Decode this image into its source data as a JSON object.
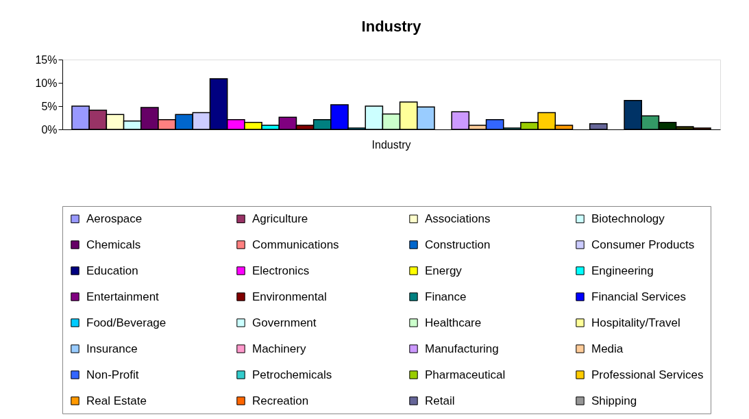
{
  "chart_data": {
    "type": "bar",
    "title": "Industry",
    "categories": [
      "Industry"
    ],
    "ylim": [
      0,
      15
    ],
    "yticks": [
      {
        "value": 0,
        "label": "0%"
      },
      {
        "value": 5,
        "label": "5%"
      },
      {
        "value": 10,
        "label": "10%"
      },
      {
        "value": 15,
        "label": "15%"
      }
    ],
    "grid": false,
    "legend": "bottom",
    "series": [
      {
        "name": "Aerospace",
        "color": "#9999ff",
        "values": [
          5.0
        ]
      },
      {
        "name": "Agriculture",
        "color": "#993366",
        "values": [
          4.1
        ]
      },
      {
        "name": "Associations",
        "color": "#ffffcc",
        "values": [
          3.2
        ]
      },
      {
        "name": "Biotechnology",
        "color": "#ccffff",
        "values": [
          1.8
        ]
      },
      {
        "name": "Chemicals",
        "color": "#660066",
        "values": [
          4.7
        ]
      },
      {
        "name": "Communications",
        "color": "#ff8080",
        "values": [
          2.1
        ]
      },
      {
        "name": "Construction",
        "color": "#0066cc",
        "values": [
          3.2
        ]
      },
      {
        "name": "Consumer Products",
        "color": "#ccccff",
        "values": [
          3.6
        ]
      },
      {
        "name": "Education",
        "color": "#000080",
        "values": [
          10.9
        ]
      },
      {
        "name": "Electronics",
        "color": "#ff00ff",
        "values": [
          2.1
        ]
      },
      {
        "name": "Energy",
        "color": "#ffff00",
        "values": [
          1.5
        ]
      },
      {
        "name": "Engineering",
        "color": "#00ffff",
        "values": [
          0.9
        ]
      },
      {
        "name": "Entertainment",
        "color": "#800080",
        "values": [
          2.6
        ]
      },
      {
        "name": "Environmental",
        "color": "#800000",
        "values": [
          0.9
        ]
      },
      {
        "name": "Finance",
        "color": "#008080",
        "values": [
          2.1
        ]
      },
      {
        "name": "Financial Services",
        "color": "#0000ff",
        "values": [
          5.3
        ]
      },
      {
        "name": "Food/Beverage",
        "color": "#00ccff",
        "values": [
          0.3
        ]
      },
      {
        "name": "Government",
        "color": "#ccffff",
        "values": [
          5.0
        ]
      },
      {
        "name": "Healthcare",
        "color": "#ccffcc",
        "values": [
          3.3
        ]
      },
      {
        "name": "Hospitality/Travel",
        "color": "#ffff99",
        "values": [
          5.9
        ]
      },
      {
        "name": "Insurance",
        "color": "#99ccff",
        "values": [
          4.8
        ]
      },
      {
        "name": "Machinery",
        "color": "#ff99cc",
        "values": [
          null
        ]
      },
      {
        "name": "Manufacturing",
        "color": "#cc99ff",
        "values": [
          3.8
        ]
      },
      {
        "name": "Media",
        "color": "#ffcc99",
        "values": [
          0.9
        ]
      },
      {
        "name": "Non-Profit",
        "color": "#3366ff",
        "values": [
          2.1
        ]
      },
      {
        "name": "Petrochemicals",
        "color": "#33cccc",
        "values": [
          0.3
        ]
      },
      {
        "name": "Pharmaceutical",
        "color": "#99cc00",
        "values": [
          1.5
        ]
      },
      {
        "name": "Professional Services",
        "color": "#ffcc00",
        "values": [
          3.6
        ]
      },
      {
        "name": "Real Estate",
        "color": "#ff9900",
        "values": [
          0.9
        ]
      },
      {
        "name": "Recreation",
        "color": "#ff6600",
        "values": [
          null
        ]
      },
      {
        "name": "Retail",
        "color": "#666699",
        "values": [
          1.2
        ]
      },
      {
        "name": "Shipping",
        "color": "#969696",
        "values": [
          null
        ]
      },
      {
        "color": "#003366",
        "values": [
          6.2
        ]
      },
      {
        "color": "#339966",
        "values": [
          2.9
        ]
      },
      {
        "color": "#003300",
        "values": [
          1.5
        ]
      },
      {
        "color": "#333300",
        "values": [
          0.6
        ]
      },
      {
        "color": "#993300",
        "values": [
          0.3
        ]
      }
    ]
  }
}
